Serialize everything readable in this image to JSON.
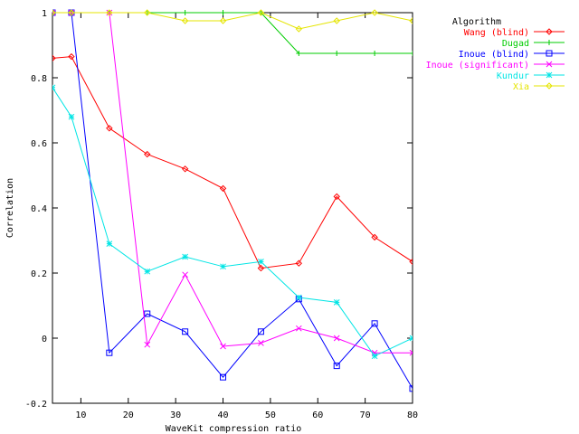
{
  "chart_data": {
    "type": "line",
    "title": "",
    "xlabel": "WaveKit compression ratio",
    "ylabel": "Correlation",
    "xlim": [
      4,
      80
    ],
    "ylim": [
      -0.2,
      1
    ],
    "xticks": [
      10,
      20,
      30,
      40,
      50,
      60,
      70,
      80
    ],
    "yticks": [
      -0.2,
      0,
      0.2,
      0.4,
      0.6,
      0.8,
      1
    ],
    "ytick_labels": [
      "-0.2",
      "0",
      "0.2",
      "0.4",
      "0.6",
      "0.8",
      "1"
    ],
    "grid": false,
    "legend_title": "Algorithm",
    "legend_position": "top-right, outside plot",
    "x": [
      4,
      8,
      16,
      24,
      32,
      40,
      48,
      56,
      64,
      72,
      80
    ],
    "series": [
      {
        "name": "Wang (blind)",
        "color": "#ff0000",
        "marker": "diamond",
        "values": [
          0.86,
          0.865,
          0.645,
          0.565,
          0.52,
          0.46,
          0.215,
          0.23,
          0.435,
          0.31,
          0.235
        ]
      },
      {
        "name": "Dugad",
        "color": "#00cc00",
        "marker": "plus",
        "values": [
          1,
          1,
          1,
          1,
          1,
          1,
          1,
          0.875,
          0.875,
          0.875,
          0.875
        ]
      },
      {
        "name": "Inoue (blind)",
        "color": "#0000ff",
        "marker": "square",
        "values": [
          1,
          1,
          -0.045,
          0.075,
          0.02,
          -0.12,
          0.02,
          0.12,
          -0.085,
          0.045,
          -0.155
        ]
      },
      {
        "name": "Inoue (significant)",
        "color": "#ff00ff",
        "marker": "x",
        "values": [
          1,
          1,
          1,
          -0.02,
          0.195,
          -0.025,
          -0.015,
          0.03,
          0.0,
          -0.045,
          -0.045
        ]
      },
      {
        "name": "Kundur",
        "color": "#00e5e5",
        "marker": "star",
        "values": [
          0.77,
          0.68,
          0.29,
          0.205,
          0.25,
          0.22,
          0.235,
          0.125,
          0.11,
          -0.055,
          0.0
        ]
      },
      {
        "name": "Xia",
        "color": "#e5e500",
        "marker": "diamond",
        "values": [
          1,
          1,
          1,
          1,
          0.975,
          0.975,
          1,
          0.95,
          0.975,
          1,
          0.975
        ]
      }
    ]
  }
}
